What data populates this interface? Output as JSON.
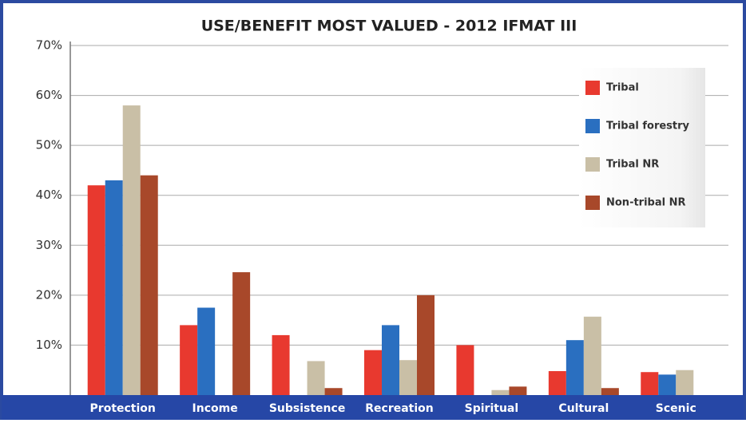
{
  "chart_data": {
    "type": "bar",
    "title": "USE/BENEFIT MOST VALUED - 2012 IFMAT III",
    "categories": [
      "Protection",
      "Income",
      "Subsistence",
      "Recreation",
      "Spiritual",
      "Cultural",
      "Scenic"
    ],
    "series": [
      {
        "name": "Tribal",
        "color": "#e8392f",
        "values": [
          42,
          14,
          12,
          9,
          10,
          4.8,
          4.6
        ]
      },
      {
        "name": "Tribal forestry",
        "color": "#2a6fc0",
        "values": [
          43,
          17.5,
          0,
          14,
          0,
          11,
          4.1
        ]
      },
      {
        "name": "Tribal NR",
        "color": "#c9bfa6",
        "values": [
          58,
          0,
          6.8,
          7,
          1,
          15.7,
          5
        ]
      },
      {
        "name": "Non-tribal NR",
        "color": "#a8482a",
        "values": [
          44,
          24.6,
          1.4,
          20,
          1.7,
          1.4,
          0
        ]
      }
    ],
    "ylim": [
      0,
      70
    ],
    "yticks": [
      {
        "value": 10,
        "label": "10%"
      },
      {
        "value": 20,
        "label": "20%"
      },
      {
        "value": 30,
        "label": "30%"
      },
      {
        "value": 40,
        "label": "40%"
      },
      {
        "value": 50,
        "label": "50%"
      },
      {
        "value": 60,
        "label": "60%"
      },
      {
        "value": 70,
        "label": "70%"
      }
    ],
    "grid": true,
    "legend": "upper right"
  }
}
